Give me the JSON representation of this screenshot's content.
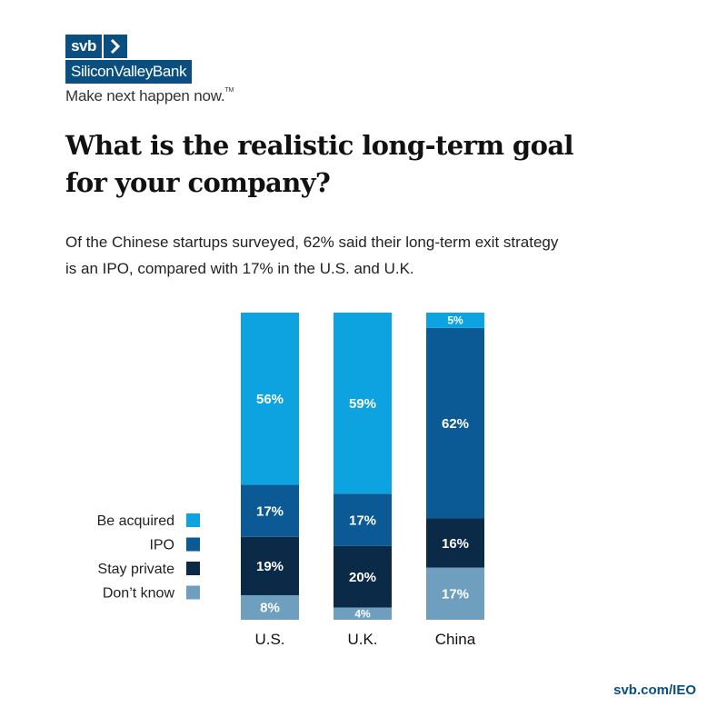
{
  "brand": {
    "logo_short": "svb",
    "logo_full": "SiliconValleyBank",
    "tagline": "Make next happen now.",
    "tagline_mark": "TM",
    "color_primary": "#0a4f80"
  },
  "headline_lines": [
    "What is the realistic long-term goal",
    "for your company?"
  ],
  "subtitle_lines": [
    "Of the Chinese startups surveyed, 62% said their long-term exit strategy",
    "is an IPO, compared with 17% in the U.S. and U.K."
  ],
  "footer": {
    "link": "svb.com/IEO"
  },
  "chart_data": {
    "type": "bar",
    "stacked": true,
    "categories": [
      "U.S.",
      "U.K.",
      "China"
    ],
    "ylim": [
      0,
      100
    ],
    "legend_position": "left",
    "series": [
      {
        "name": "Don’t know",
        "values": [
          8,
          4,
          17
        ],
        "labels": [
          "8%",
          "4%",
          "17%"
        ],
        "color": "#6f9fbf"
      },
      {
        "name": "Stay private",
        "values": [
          19,
          20,
          16
        ],
        "labels": [
          "19%",
          "20%",
          "16%"
        ],
        "color": "#0b2a47"
      },
      {
        "name": "IPO",
        "values": [
          17,
          17,
          62
        ],
        "labels": [
          "17%",
          "17%",
          "62%"
        ],
        "color": "#0b5a96"
      },
      {
        "name": "Be acquired",
        "values": [
          56,
          59,
          5
        ],
        "labels": [
          "56%",
          "59%",
          "5%"
        ],
        "color": "#0ca3e0"
      }
    ],
    "legend_order": [
      "Be acquired",
      "IPO",
      "Stay private",
      "Don’t know"
    ]
  }
}
